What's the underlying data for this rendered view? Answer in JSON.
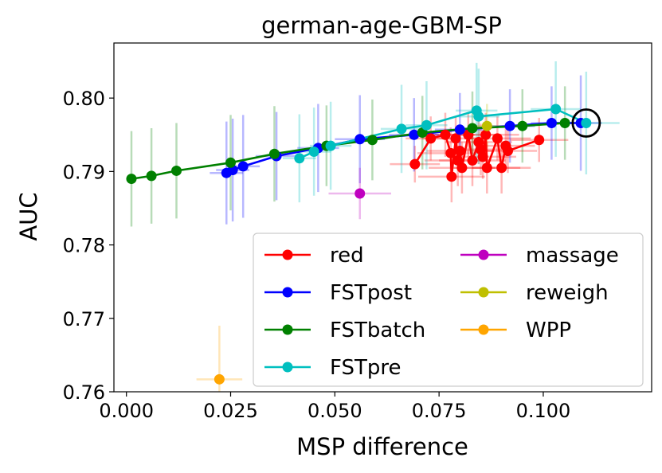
{
  "chart_data": {
    "type": "scatter",
    "title": "german-age-GBM-SP",
    "xlabel": "MSP difference",
    "ylabel": "AUC",
    "xlim": [
      -0.003,
      0.126
    ],
    "ylim": [
      0.76,
      0.8075
    ],
    "xticks": [
      0.0,
      0.025,
      0.05,
      0.075,
      0.1
    ],
    "xtick_labels": [
      "0.000",
      "0.025",
      "0.050",
      "0.075",
      "0.100"
    ],
    "yticks": [
      0.76,
      0.77,
      0.78,
      0.79,
      0.8
    ],
    "ytick_labels": [
      "0.76",
      "0.77",
      "0.78",
      "0.79",
      "0.80"
    ],
    "legend_position": "lower-right",
    "highlight": {
      "x": 0.1103,
      "y": 0.7966,
      "marker": "circle"
    },
    "series": [
      {
        "name": "red",
        "color": "#ff0000",
        "connect": true,
        "points": [
          {
            "x": 0.0692,
            "y": 0.791,
            "xerr": 0.006,
            "yerr": 0.0025
          },
          {
            "x": 0.073,
            "y": 0.7945,
            "xerr": 0.006,
            "yerr": 0.003
          },
          {
            "x": 0.0765,
            "y": 0.795,
            "xerr": 0.007,
            "yerr": 0.003
          },
          {
            "x": 0.0778,
            "y": 0.7925,
            "xerr": 0.008,
            "yerr": 0.0035
          },
          {
            "x": 0.078,
            "y": 0.7893,
            "xerr": 0.008,
            "yerr": 0.0035
          },
          {
            "x": 0.079,
            "y": 0.7945,
            "xerr": 0.008,
            "yerr": 0.003
          },
          {
            "x": 0.0795,
            "y": 0.7915,
            "xerr": 0.008,
            "yerr": 0.0035
          },
          {
            "x": 0.08,
            "y": 0.7928,
            "xerr": 0.008,
            "yerr": 0.003
          },
          {
            "x": 0.0805,
            "y": 0.7905,
            "xerr": 0.008,
            "yerr": 0.0035
          },
          {
            "x": 0.082,
            "y": 0.795,
            "xerr": 0.008,
            "yerr": 0.003
          },
          {
            "x": 0.083,
            "y": 0.7915,
            "xerr": 0.008,
            "yerr": 0.0035
          },
          {
            "x": 0.0845,
            "y": 0.794,
            "xerr": 0.008,
            "yerr": 0.003
          },
          {
            "x": 0.085,
            "y": 0.793,
            "xerr": 0.008,
            "yerr": 0.0035
          },
          {
            "x": 0.0855,
            "y": 0.792,
            "xerr": 0.008,
            "yerr": 0.003
          },
          {
            "x": 0.0862,
            "y": 0.795,
            "xerr": 0.008,
            "yerr": 0.003
          },
          {
            "x": 0.0865,
            "y": 0.7905,
            "xerr": 0.008,
            "yerr": 0.0035
          },
          {
            "x": 0.089,
            "y": 0.7945,
            "xerr": 0.008,
            "yerr": 0.003
          },
          {
            "x": 0.09,
            "y": 0.7905,
            "xerr": 0.007,
            "yerr": 0.0035
          },
          {
            "x": 0.091,
            "y": 0.7935,
            "xerr": 0.007,
            "yerr": 0.003
          },
          {
            "x": 0.0915,
            "y": 0.7928,
            "xerr": 0.007,
            "yerr": 0.003
          },
          {
            "x": 0.099,
            "y": 0.7943,
            "xerr": 0.007,
            "yerr": 0.003
          }
        ]
      },
      {
        "name": "FSTpost",
        "color": "#0000ff",
        "connect": true,
        "points": [
          {
            "x": 0.024,
            "y": 0.7898,
            "xerr": 0.004,
            "yerr": 0.007
          },
          {
            "x": 0.0255,
            "y": 0.7902,
            "xerr": 0.004,
            "yerr": 0.007
          },
          {
            "x": 0.028,
            "y": 0.7907,
            "xerr": 0.004,
            "yerr": 0.007
          },
          {
            "x": 0.036,
            "y": 0.7921,
            "xerr": 0.005,
            "yerr": 0.006
          },
          {
            "x": 0.046,
            "y": 0.7932,
            "xerr": 0.005,
            "yerr": 0.006
          },
          {
            "x": 0.056,
            "y": 0.7944,
            "xerr": 0.006,
            "yerr": 0.006
          },
          {
            "x": 0.069,
            "y": 0.795,
            "xerr": 0.006,
            "yerr": 0.005
          },
          {
            "x": 0.08,
            "y": 0.7957,
            "xerr": 0.006,
            "yerr": 0.005
          },
          {
            "x": 0.092,
            "y": 0.7962,
            "xerr": 0.006,
            "yerr": 0.005
          },
          {
            "x": 0.102,
            "y": 0.7966,
            "xerr": 0.005,
            "yerr": 0.005
          },
          {
            "x": 0.109,
            "y": 0.7966,
            "xerr": 0.005,
            "yerr": 0.0065
          }
        ]
      },
      {
        "name": "FSTbatch",
        "color": "#008000",
        "connect": true,
        "points": [
          {
            "x": 0.0012,
            "y": 0.789,
            "xerr": 0.0,
            "yerr": 0.0065
          },
          {
            "x": 0.006,
            "y": 0.7894,
            "xerr": 0.0,
            "yerr": 0.0065
          },
          {
            "x": 0.012,
            "y": 0.7901,
            "xerr": 0.0,
            "yerr": 0.0065
          },
          {
            "x": 0.025,
            "y": 0.7912,
            "xerr": 0.0,
            "yerr": 0.0065
          },
          {
            "x": 0.0355,
            "y": 0.7924,
            "xerr": 0.0,
            "yerr": 0.0065
          },
          {
            "x": 0.048,
            "y": 0.7935,
            "xerr": 0.0,
            "yerr": 0.0055
          },
          {
            "x": 0.059,
            "y": 0.7943,
            "xerr": 0.0,
            "yerr": 0.0055
          },
          {
            "x": 0.071,
            "y": 0.7953,
            "xerr": 0.0,
            "yerr": 0.005
          },
          {
            "x": 0.083,
            "y": 0.7959,
            "xerr": 0.0,
            "yerr": 0.005
          },
          {
            "x": 0.095,
            "y": 0.7962,
            "xerr": 0.0,
            "yerr": 0.005
          },
          {
            "x": 0.1052,
            "y": 0.7966,
            "xerr": 0.0,
            "yerr": 0.005
          }
        ]
      },
      {
        "name": "FSTpre",
        "color": "#00bfbf",
        "connect": true,
        "points": [
          {
            "x": 0.0415,
            "y": 0.7918,
            "xerr": 0.004,
            "yerr": 0.006
          },
          {
            "x": 0.045,
            "y": 0.7927,
            "xerr": 0.004,
            "yerr": 0.006
          },
          {
            "x": 0.049,
            "y": 0.7935,
            "xerr": 0.005,
            "yerr": 0.006
          },
          {
            "x": 0.066,
            "y": 0.7958,
            "xerr": 0.005,
            "yerr": 0.006
          },
          {
            "x": 0.072,
            "y": 0.7963,
            "xerr": 0.005,
            "yerr": 0.006
          },
          {
            "x": 0.084,
            "y": 0.7983,
            "xerr": 0.005,
            "yerr": 0.0065
          },
          {
            "x": 0.0845,
            "y": 0.7975,
            "xerr": 0.005,
            "yerr": 0.0065
          },
          {
            "x": 0.103,
            "y": 0.7985,
            "xerr": 0.006,
            "yerr": 0.0065
          },
          {
            "x": 0.1103,
            "y": 0.7966,
            "xerr": 0.008,
            "yerr": 0.007
          }
        ]
      },
      {
        "name": "massage",
        "color": "#bf00bf",
        "connect": false,
        "points": [
          {
            "x": 0.056,
            "y": 0.787,
            "xerr": 0.0075,
            "yerr": 0.0035
          }
        ]
      },
      {
        "name": "reweigh",
        "color": "#bfbf00",
        "connect": false,
        "points": [
          {
            "x": 0.0865,
            "y": 0.7962,
            "xerr": 0.004,
            "yerr": 0.003
          }
        ]
      },
      {
        "name": "WPP",
        "color": "#ffa500",
        "connect": false,
        "points": [
          {
            "x": 0.0223,
            "y": 0.7617,
            "xerr": 0.0055,
            "yerr": 0.0073
          }
        ]
      }
    ]
  }
}
